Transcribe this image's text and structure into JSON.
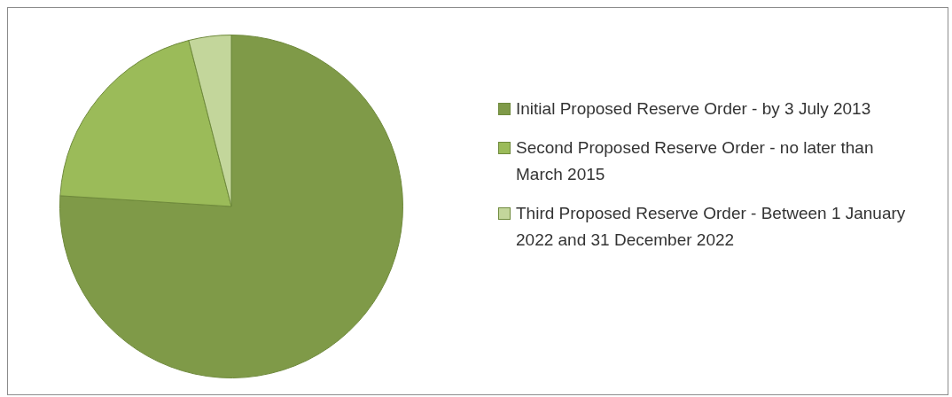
{
  "chart_data": {
    "type": "pie",
    "categories": [
      "Initial Proposed Reserve Order - by 3 July 2013",
      "Second Proposed Reserve Order - no later than March 2015",
      "Third Proposed Reserve Order - Between 1 January 2022 and 31 December 2022"
    ],
    "values": [
      76,
      20,
      4
    ],
    "colors": [
      "#7f9a48",
      "#9bbb59",
      "#c3d69b"
    ],
    "legend": "right"
  }
}
